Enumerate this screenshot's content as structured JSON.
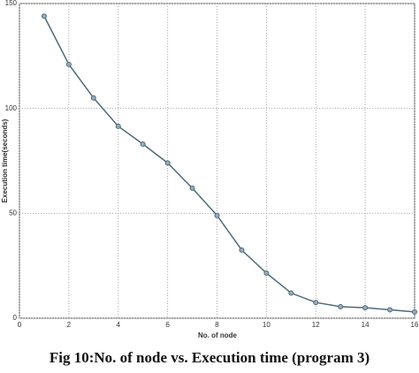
{
  "chart_data": {
    "type": "line",
    "caption": "Fig 10:No. of node vs. Execution time (program 3)",
    "xlabel": "No. of node",
    "ylabel": "Execution time(seconds)",
    "x": [
      1,
      2,
      3,
      4,
      5,
      6,
      7,
      8,
      9,
      10,
      11,
      12,
      13,
      14,
      15,
      16
    ],
    "series": [
      {
        "color": "#4f6b78",
        "values": [
          144,
          121,
          105,
          91.5,
          83,
          74,
          62,
          49,
          32.5,
          21.5,
          12,
          7.5,
          5.5,
          5,
          4,
          3
        ]
      }
    ],
    "xlim": [
      0,
      16
    ],
    "xticks": [
      0,
      2,
      4,
      6,
      8,
      10,
      12,
      14,
      16
    ],
    "ylim": [
      0,
      150
    ],
    "yticks": [
      0,
      50,
      100,
      150
    ],
    "grid": true
  }
}
